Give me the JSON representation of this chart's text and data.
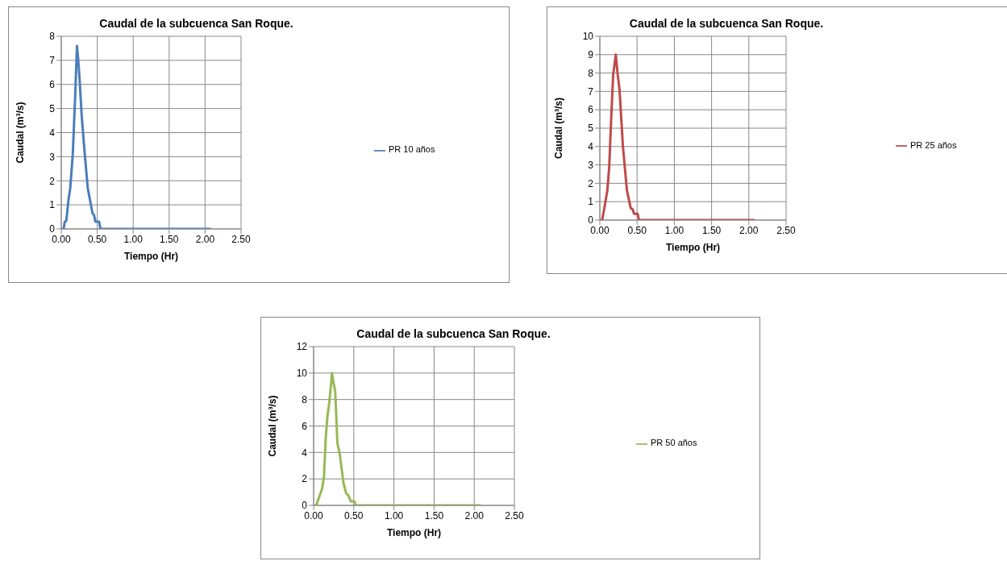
{
  "chart_data": [
    {
      "type": "line",
      "title": "Caudal de la subcuenca San Roque.",
      "xlabel": "Tiempo (Hr)",
      "ylabel": "Caudal (m³/s)",
      "x": [
        0,
        0.033,
        0.048,
        0.07,
        0.1,
        0.125,
        0.16,
        0.196,
        0.218,
        0.231,
        0.253,
        0.284,
        0.324,
        0.368,
        0.434,
        0.456,
        0.474,
        0.526,
        0.544,
        2.08
      ],
      "series": [
        {
          "name": "PR 10 años",
          "color": "#4a7ebb",
          "values": [
            0,
            0,
            0.3,
            0.33,
            1.2,
            1.7,
            3.1,
            5.7,
            7.6,
            7.2,
            6.3,
            4.7,
            3.2,
            1.7,
            0.65,
            0.58,
            0.3,
            0.3,
            0,
            0
          ]
        }
      ],
      "xlim": [
        0,
        2.5
      ],
      "xticks": [
        {
          "value": 0,
          "label": "0.00"
        },
        {
          "value": 0.5,
          "label": "0.50"
        },
        {
          "value": 1,
          "label": "1.00"
        },
        {
          "value": 1.5,
          "label": "1.50"
        },
        {
          "value": 2,
          "label": "2.00"
        },
        {
          "value": 2.5,
          "label": "2.50"
        }
      ],
      "ylim": [
        0,
        8
      ],
      "yticks": [
        0,
        1,
        2,
        3,
        4,
        5,
        6,
        7,
        8
      ],
      "grid": true,
      "legend": "right",
      "marker": "none",
      "line_style": "solid"
    },
    {
      "type": "line",
      "title": "Caudal de la subcuenca San Roque.",
      "xlabel": "Tiempo (Hr)",
      "ylabel": "Caudal (m³/s)",
      "x": [
        0,
        0.031,
        0.067,
        0.1,
        0.126,
        0.15,
        0.179,
        0.214,
        0.24,
        0.264,
        0.31,
        0.364,
        0.414,
        0.44,
        0.46,
        0.507,
        0.526,
        2.08
      ],
      "series": [
        {
          "name": "PR 25 años",
          "color": "#be4b48",
          "values": [
            0,
            0,
            0.8,
            1.6,
            2.9,
            5.3,
            7.9,
            9,
            7.9,
            7.1,
            4,
            1.6,
            0.66,
            0.58,
            0.34,
            0.34,
            0,
            0
          ]
        }
      ],
      "xlim": [
        0,
        2.5
      ],
      "xticks": [
        {
          "value": 0,
          "label": "0.00"
        },
        {
          "value": 0.5,
          "label": "0.50"
        },
        {
          "value": 1,
          "label": "1.00"
        },
        {
          "value": 1.5,
          "label": "1.50"
        },
        {
          "value": 2,
          "label": "2.00"
        },
        {
          "value": 2.5,
          "label": "2.50"
        }
      ],
      "ylim": [
        0,
        10
      ],
      "yticks": [
        0,
        1,
        2,
        3,
        4,
        5,
        6,
        7,
        8,
        9,
        10
      ],
      "grid": true,
      "legend": "right",
      "marker": "none",
      "line_style": "solid"
    },
    {
      "type": "line",
      "title": "Caudal de la subcuenca San Roque.",
      "xlabel": "Tiempo (Hr)",
      "ylabel": "Caudal (m³/s)",
      "x": [
        0,
        0.033,
        0.073,
        0.107,
        0.129,
        0.151,
        0.173,
        0.196,
        0.229,
        0.247,
        0.269,
        0.296,
        0.322,
        0.373,
        0.407,
        0.429,
        0.462,
        0.507,
        0.522,
        2.08
      ],
      "series": [
        {
          "name": "PR 50 años",
          "color": "#98b954",
          "values": [
            0,
            0,
            0.7,
            1.3,
            2.2,
            5.1,
            6.8,
            7.8,
            10,
            9.3,
            8.6,
            4.7,
            4,
            1.65,
            0.88,
            0.79,
            0.31,
            0.31,
            0,
            0
          ]
        }
      ],
      "xlim": [
        0,
        2.5
      ],
      "xticks": [
        {
          "value": 0,
          "label": "0.00"
        },
        {
          "value": 0.5,
          "label": "0.50"
        },
        {
          "value": 1,
          "label": "1.00"
        },
        {
          "value": 1.5,
          "label": "1.50"
        },
        {
          "value": 2,
          "label": "2.00"
        },
        {
          "value": 2.5,
          "label": "2.50"
        }
      ],
      "ylim": [
        0,
        12
      ],
      "yticks": [
        0,
        2,
        4,
        6,
        8,
        10,
        12
      ],
      "grid": true,
      "legend": "right",
      "marker": "none",
      "line_style": "solid"
    }
  ]
}
